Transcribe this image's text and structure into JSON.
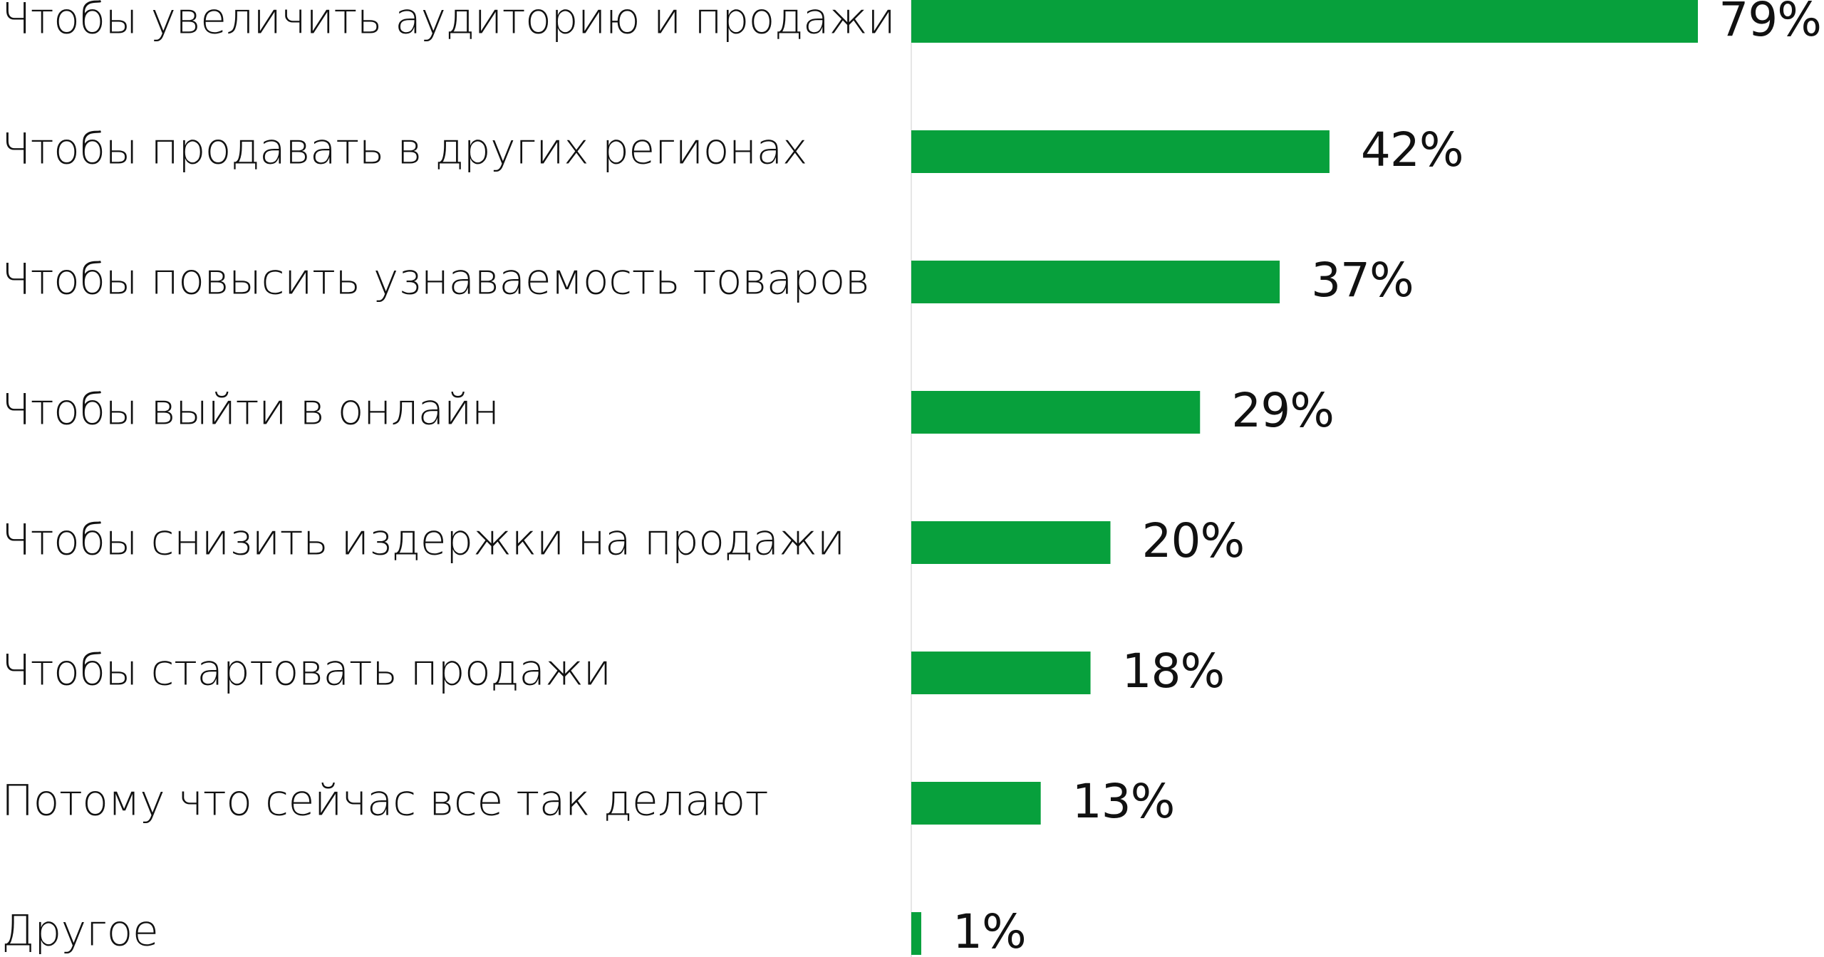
{
  "chart_data": {
    "type": "bar",
    "orientation": "horizontal",
    "categories": [
      "Чтобы увеличить аудиторию и продажи",
      "Чтобы продавать в других регионах",
      "Чтобы повысить узнаваемость товаров",
      "Чтобы выйти в онлайн",
      "Чтобы снизить издержки на продажи",
      "Чтобы стартовать продажи",
      "Потому что сейчас все так делают",
      "Другое"
    ],
    "values": [
      79,
      42,
      37,
      29,
      20,
      18,
      13,
      1
    ],
    "value_labels": [
      "79%",
      "42%",
      "37%",
      "29%",
      "20%",
      "18%",
      "13%",
      "1%"
    ],
    "unit": "%",
    "xlim": [
      0,
      79
    ],
    "bar_color": "#07a03c",
    "axis_line_color": "#e6e6e6",
    "grid": false,
    "legend": "none"
  }
}
